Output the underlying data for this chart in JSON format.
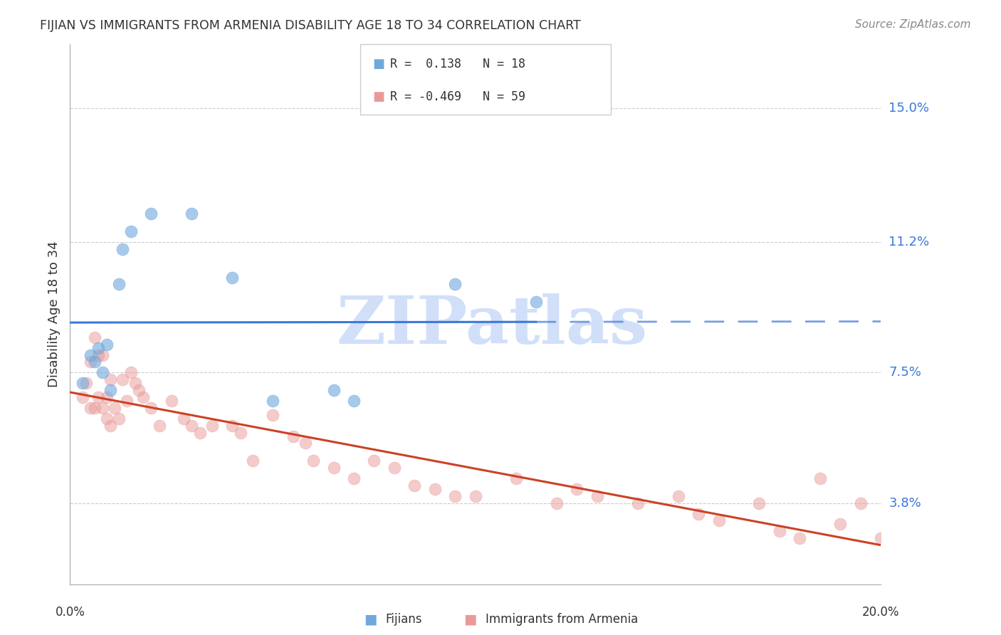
{
  "title": "FIJIAN VS IMMIGRANTS FROM ARMENIA DISABILITY AGE 18 TO 34 CORRELATION CHART",
  "source": "Source: ZipAtlas.com",
  "ylabel": "Disability Age 18 to 34",
  "ytick_labels": [
    "15.0%",
    "11.2%",
    "7.5%",
    "3.8%"
  ],
  "ytick_values": [
    0.15,
    0.112,
    0.075,
    0.038
  ],
  "xlim": [
    0.0,
    0.2
  ],
  "ylim": [
    0.015,
    0.168
  ],
  "fijian_color": "#6fa8dc",
  "armenia_color": "#ea9999",
  "fijian_line_color": "#3c78d8",
  "armenia_line_color": "#cc4125",
  "watermark_text": "ZIPatlas",
  "watermark_color": "#c9daf8",
  "blue_scatter_x": [
    0.003,
    0.005,
    0.006,
    0.007,
    0.008,
    0.009,
    0.01,
    0.012,
    0.013,
    0.015,
    0.02,
    0.03,
    0.04,
    0.05,
    0.065,
    0.07,
    0.095,
    0.115
  ],
  "blue_scatter_y": [
    0.072,
    0.08,
    0.078,
    0.082,
    0.075,
    0.083,
    0.07,
    0.1,
    0.11,
    0.115,
    0.12,
    0.12,
    0.102,
    0.067,
    0.07,
    0.067,
    0.1,
    0.095
  ],
  "pink_scatter_x": [
    0.003,
    0.004,
    0.005,
    0.005,
    0.006,
    0.006,
    0.007,
    0.007,
    0.008,
    0.008,
    0.009,
    0.009,
    0.01,
    0.01,
    0.011,
    0.012,
    0.013,
    0.014,
    0.015,
    0.016,
    0.017,
    0.018,
    0.02,
    0.022,
    0.025,
    0.028,
    0.03,
    0.032,
    0.035,
    0.04,
    0.042,
    0.045,
    0.05,
    0.055,
    0.058,
    0.06,
    0.065,
    0.07,
    0.075,
    0.08,
    0.085,
    0.09,
    0.095,
    0.1,
    0.11,
    0.12,
    0.125,
    0.13,
    0.14,
    0.15,
    0.155,
    0.16,
    0.17,
    0.175,
    0.18,
    0.185,
    0.19,
    0.195,
    0.2
  ],
  "pink_scatter_y": [
    0.068,
    0.072,
    0.065,
    0.078,
    0.065,
    0.085,
    0.068,
    0.08,
    0.065,
    0.08,
    0.062,
    0.068,
    0.06,
    0.073,
    0.065,
    0.062,
    0.073,
    0.067,
    0.075,
    0.072,
    0.07,
    0.068,
    0.065,
    0.06,
    0.067,
    0.062,
    0.06,
    0.058,
    0.06,
    0.06,
    0.058,
    0.05,
    0.063,
    0.057,
    0.055,
    0.05,
    0.048,
    0.045,
    0.05,
    0.048,
    0.043,
    0.042,
    0.04,
    0.04,
    0.045,
    0.038,
    0.042,
    0.04,
    0.038,
    0.04,
    0.035,
    0.033,
    0.038,
    0.03,
    0.028,
    0.045,
    0.032,
    0.038,
    0.028
  ]
}
